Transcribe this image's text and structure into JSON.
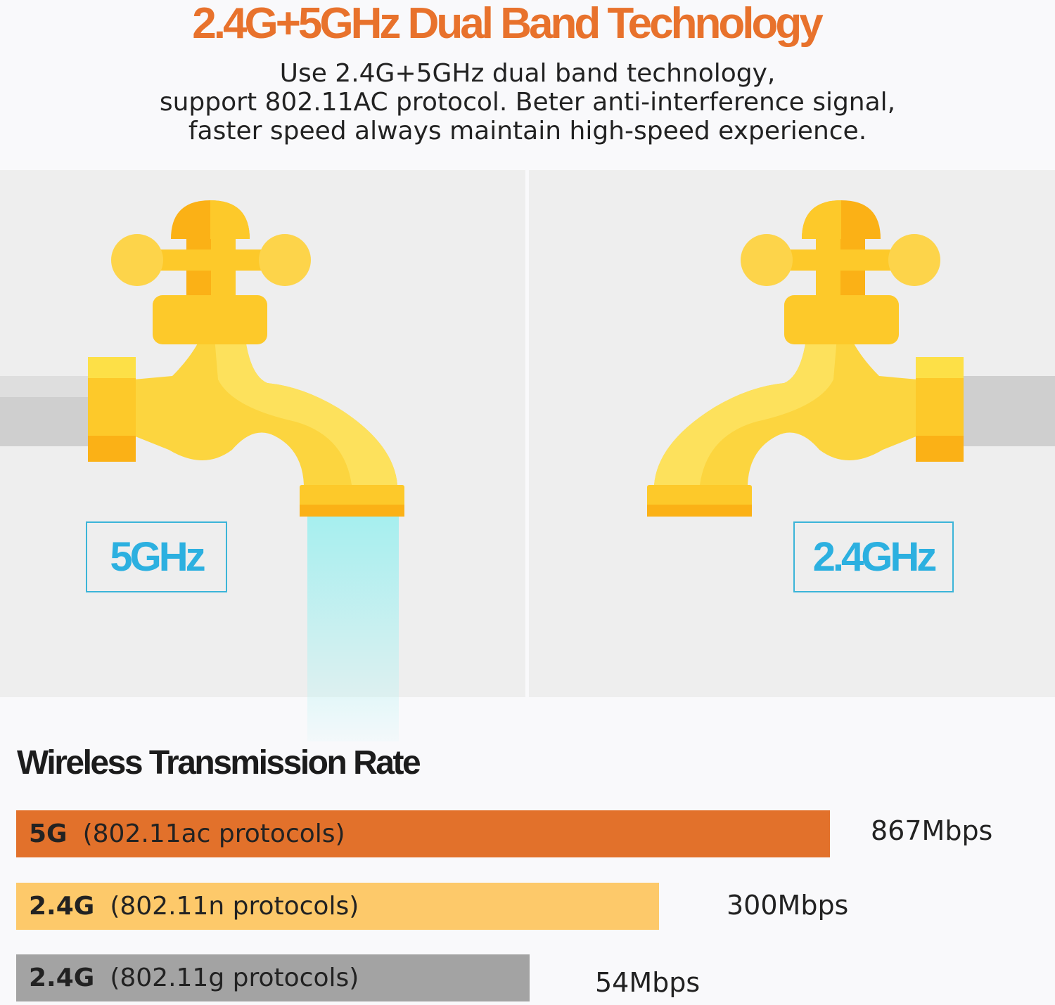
{
  "header": {
    "title": "2.4G+5GHz Dual Band Technology",
    "subtitle_lines": [
      "Use 2.4G+5GHz dual band technology,",
      "support 802.11AC protocol. Beter anti-interference signal,",
      "faster speed always maintain high-speed experience."
    ]
  },
  "panels": [
    {
      "label": "5GHz",
      "icon": "faucet-open-icon",
      "water": true
    },
    {
      "label": "2.4GHz",
      "icon": "faucet-closed-icon",
      "water": false
    }
  ],
  "rates": {
    "title": "Wireless Transmission Rate",
    "items": [
      {
        "band": "5G",
        "protocol": "(802.11ac protocols)",
        "value": "867Mbps",
        "mbps": 867,
        "color": "#e2712b"
      },
      {
        "band": "2.4G",
        "protocol": "(802.11n protocols)",
        "value": "300Mbps",
        "mbps": 300,
        "color": "#fdc96a"
      },
      {
        "band": "2.4G",
        "protocol": "(802.11g protocols)",
        "value": "54Mbps",
        "mbps": 54,
        "color": "#a3a3a3"
      }
    ]
  },
  "colors": {
    "title": "#e8722c",
    "band_label": "#2cb0e0",
    "faucet": "#fcd53f"
  }
}
